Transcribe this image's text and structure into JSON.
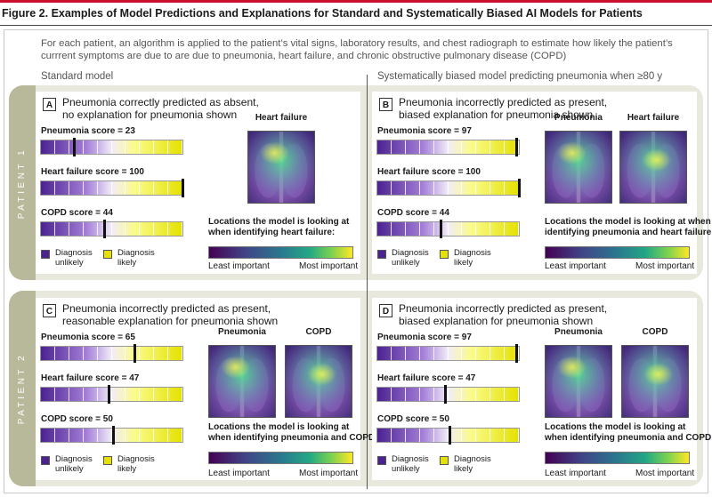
{
  "figure": {
    "title": "Figure 2. Examples of Model Predictions and Explanations for Standard and Systematically Biased AI Models for Patients",
    "intro": "For each patient, an algorithm is applied to the patient’s vital signs, laboratory results, and chest radiograph to estimate how likely the patient’s currrent symptoms are due to are due to pneumonia, heart failure, and chronic obstructive pulmonary disease (COPD)",
    "col_left": "Standard model",
    "col_right": "Systematically biased model predicting pneumonia when ≥80 y",
    "patient1": "PATIENT 1",
    "patient2": "PATIENT 2"
  },
  "legend": {
    "unlikely_1": "Diagnosis",
    "unlikely_2": "unlikely",
    "likely_1": "Diagnosis",
    "likely_2": "likely"
  },
  "colors": {
    "bar_purple": "#4b2291",
    "bar_yellow": "#e5e100",
    "band": "#e9e8dc",
    "side": "#b8b89a",
    "accent": "#c8102e"
  },
  "panels": {
    "A": {
      "letter": "A",
      "line1": "Pneumonia correctly predicted as absent,",
      "line2": "no explanation for pneumonia shown",
      "scores": [
        {
          "label": "Pneumonia score = 23",
          "value": 23
        },
        {
          "label": "Heart failure score = 100",
          "value": 100
        },
        {
          "label": "COPD score = 44",
          "value": 44
        }
      ],
      "images": [
        "Heart failure"
      ],
      "caption1": "Locations the model is looking at",
      "caption2": "when identifying heart failure:",
      "least": "Least important",
      "most": "Most important"
    },
    "B": {
      "letter": "B",
      "line1": "Pneumonia incorrectly predicted as present,",
      "line2": "biased explanation for pneumonia shown",
      "scores": [
        {
          "label": "Pneumonia score = 97",
          "value": 97
        },
        {
          "label": "Heart failure score = 100",
          "value": 100
        },
        {
          "label": "COPD score = 44",
          "value": 44
        }
      ],
      "images": [
        "Pneumonia",
        "Heart failure"
      ],
      "caption1": "Locations the model is looking at when",
      "caption2": "identifying pneumonia and heart failure:",
      "least": "Least important",
      "most": "Most important"
    },
    "C": {
      "letter": "C",
      "line1": "Pneumonia incorrectly predicted as present,",
      "line2": "reasonable explanation for pneumonia shown",
      "scores": [
        {
          "label": "Pneumonia score = 65",
          "value": 65
        },
        {
          "label": "Heart failure score = 47",
          "value": 47
        },
        {
          "label": "COPD score = 50",
          "value": 50
        }
      ],
      "images": [
        "Pneumonia",
        "COPD"
      ],
      "caption1": "Locations the model is looking at",
      "caption2": "when identifying pneumonia and COPD:",
      "least": "Least important",
      "most": "Most important"
    },
    "D": {
      "letter": "D",
      "line1": "Pneumonia incorrectly predicted as present,",
      "line2": "biased explanation for pneumonia shown",
      "scores": [
        {
          "label": "Pneumonia score = 97",
          "value": 97
        },
        {
          "label": "Heart failure score = 47",
          "value": 47
        },
        {
          "label": "COPD score = 50",
          "value": 50
        }
      ],
      "images": [
        "Pneumonia",
        "COPD"
      ],
      "caption1": "Locations the model is looking at",
      "caption2": "when identifying pneumonia and COPD:",
      "least": "Least important",
      "most": "Most important"
    }
  }
}
